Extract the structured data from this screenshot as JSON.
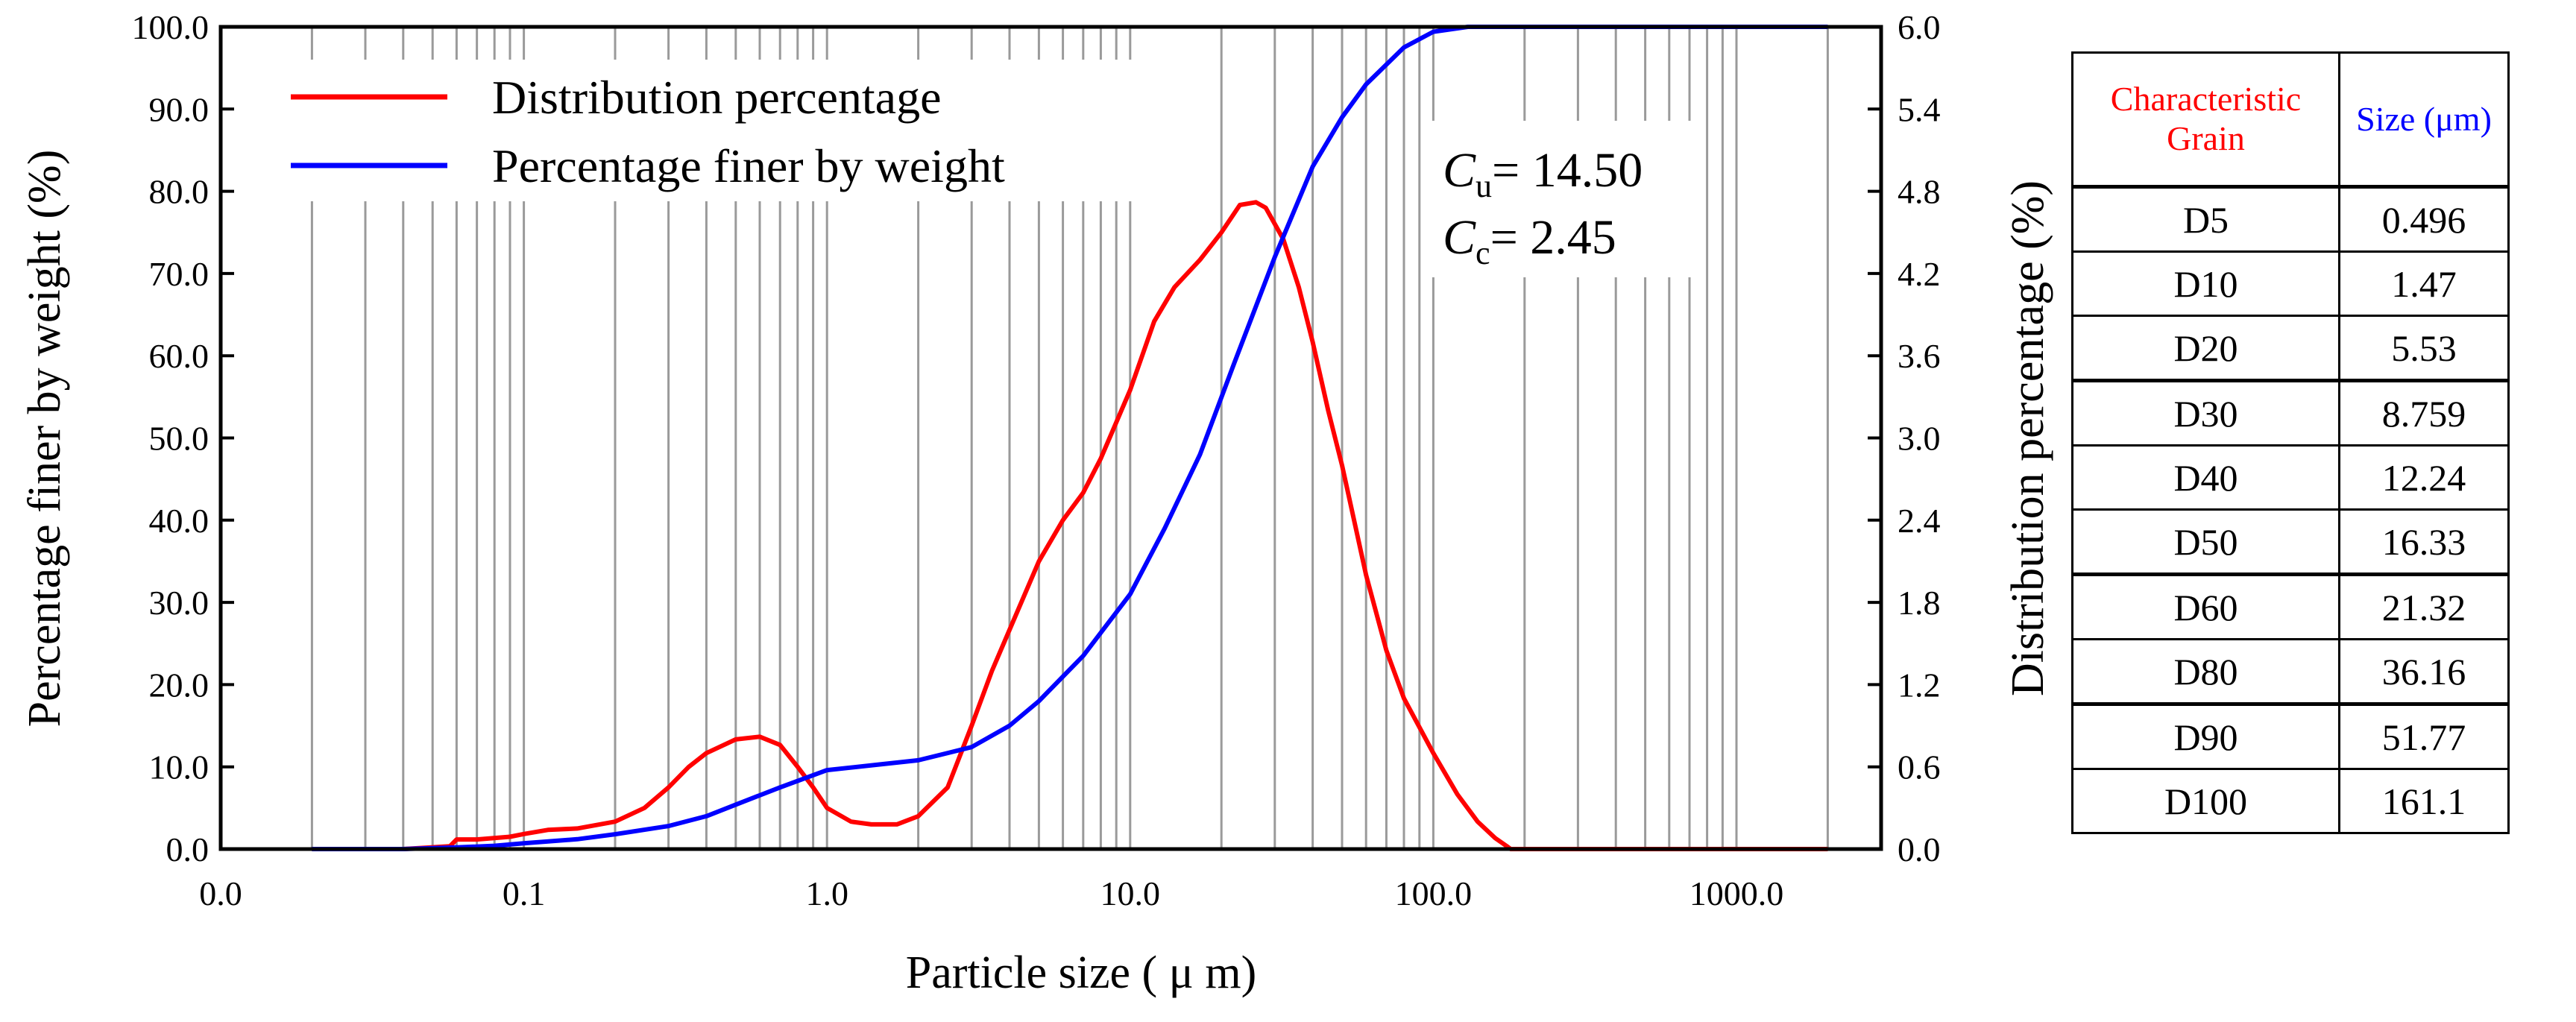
{
  "chart_data": {
    "type": "line",
    "xlabel": "Particle size ( μ m)",
    "ylabel": "Percentage finer by weight (%)",
    "y2label": "Distribution percentage (%)",
    "x_scale": "log",
    "x_ticks": [
      "0.0",
      "0.1",
      "1.0",
      "10.0",
      "100.0",
      "1000.0"
    ],
    "y_ticks": [
      "0.0",
      "10.0",
      "20.0",
      "30.0",
      "40.0",
      "50.0",
      "60.0",
      "70.0",
      "80.0",
      "90.0",
      "100.0"
    ],
    "y2_ticks": [
      "0.0",
      "0.6",
      "1.2",
      "1.8",
      "2.4",
      "3.0",
      "3.6",
      "4.2",
      "4.8",
      "5.4",
      "6.0"
    ],
    "ylim": [
      0,
      100
    ],
    "y2lim": [
      0,
      6
    ],
    "xlim": [
      0.01,
      3000
    ],
    "grid": true,
    "legend_position": "top-left",
    "series": [
      {
        "name": "Distribution percentage",
        "color": "#ff0000",
        "axis": "right",
        "x": [
          0.02,
          0.04,
          0.057,
          0.06,
          0.07,
          0.09,
          0.1,
          0.12,
          0.15,
          0.2,
          0.25,
          0.3,
          0.35,
          0.4,
          0.5,
          0.6,
          0.7,
          0.8,
          0.9,
          1.0,
          1.2,
          1.4,
          1.7,
          2.0,
          2.5,
          3.0,
          3.5,
          4.0,
          5.0,
          6.0,
          7.0,
          8.0,
          10.0,
          12.0,
          14.0,
          17.0,
          20.0,
          23.0,
          26.0,
          28.0,
          32.0,
          36.0,
          40.0,
          45.0,
          50.0,
          60.0,
          70.0,
          80.0,
          100.0,
          120.0,
          140.0,
          160.0,
          175.0,
          180.0,
          300.0,
          1000.0,
          2000.0
        ],
        "y": [
          0,
          0,
          0.02,
          0.07,
          0.07,
          0.09,
          0.11,
          0.14,
          0.15,
          0.2,
          0.3,
          0.45,
          0.6,
          0.7,
          0.8,
          0.82,
          0.76,
          0.6,
          0.45,
          0.3,
          0.2,
          0.18,
          0.18,
          0.24,
          0.45,
          0.9,
          1.3,
          1.6,
          2.1,
          2.4,
          2.6,
          2.85,
          3.35,
          3.85,
          4.1,
          4.3,
          4.5,
          4.7,
          4.72,
          4.68,
          4.45,
          4.1,
          3.7,
          3.2,
          2.8,
          2.0,
          1.45,
          1.1,
          0.7,
          0.4,
          0.2,
          0.08,
          0.02,
          0,
          0,
          0,
          0
        ]
      },
      {
        "name": "Percentage finer by weight",
        "color": "#0000ff",
        "axis": "left",
        "x": [
          0.02,
          0.04,
          0.06,
          0.08,
          0.1,
          0.15,
          0.2,
          0.3,
          0.4,
          0.5,
          0.7,
          1.0,
          1.5,
          2.0,
          3.0,
          4.0,
          5.0,
          7.0,
          10.0,
          13.0,
          17.0,
          22.0,
          30.0,
          40.0,
          50.0,
          60.0,
          80.0,
          100.0,
          130.0,
          160.0,
          200.0,
          500.0,
          2000.0
        ],
        "y": [
          0,
          0,
          0.2,
          0.4,
          0.7,
          1.2,
          1.8,
          2.8,
          4.0,
          5.4,
          7.5,
          9.6,
          10.3,
          10.8,
          12.4,
          15.0,
          18.0,
          23.5,
          31.0,
          39.0,
          48.0,
          59.0,
          72.0,
          83.0,
          89.0,
          93.0,
          97.5,
          99.4,
          100,
          100,
          100,
          100,
          100
        ]
      }
    ]
  },
  "annotation": {
    "cu_symbol": "C",
    "cu_sub": "u",
    "cu_value": "= 14.50",
    "cc_symbol": "C",
    "cc_sub": "c",
    "cc_value": "= 2.45"
  },
  "table": {
    "header_grain": "Characteristic Grain",
    "header_size": "Size (μm)",
    "header_grain_color": "#ff0000",
    "header_size_color": "#0000ff",
    "rows": [
      {
        "grain": "D5",
        "size": "0.496"
      },
      {
        "grain": "D10",
        "size": "1.47"
      },
      {
        "grain": "D20",
        "size": "5.53"
      },
      {
        "grain": "D30",
        "size": "8.759"
      },
      {
        "grain": "D40",
        "size": "12.24"
      },
      {
        "grain": "D50",
        "size": "16.33"
      },
      {
        "grain": "D60",
        "size": "21.32"
      },
      {
        "grain": "D80",
        "size": "36.16"
      },
      {
        "grain": "D90",
        "size": "51.77"
      },
      {
        "grain": "D100",
        "size": "161.1"
      }
    ]
  }
}
